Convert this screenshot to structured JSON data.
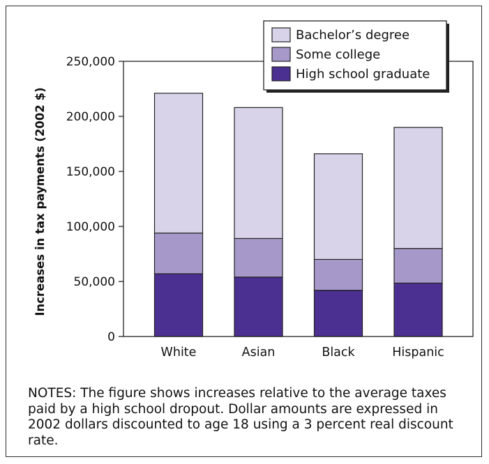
{
  "chart_data": {
    "type": "bar",
    "stacked": true,
    "categories": [
      "White",
      "Asian",
      "Black",
      "Hispanic"
    ],
    "series": [
      {
        "name": "High school graduate",
        "values": [
          57000,
          54000,
          42000,
          48500
        ],
        "color": "#4b2f91"
      },
      {
        "name": "Some college",
        "values": [
          37000,
          35000,
          28000,
          31500
        ],
        "color": "#a699c9"
      },
      {
        "name": "Bachelor’s degree",
        "values": [
          127000,
          119000,
          96000,
          110000
        ],
        "color": "#d8d3e8"
      }
    ],
    "legend_order": [
      "Bachelor’s degree",
      "Some college",
      "High school graduate"
    ],
    "legend_position": "top-right",
    "ylabel": "Increases in tax payments (2002 $)",
    "xlabel": "",
    "ylim": [
      0,
      250000
    ],
    "yticks": [
      0,
      50000,
      100000,
      150000,
      200000,
      250000
    ],
    "ytick_labels": [
      "0",
      "50,000",
      "100,000",
      "150,000",
      "200,000",
      "250,000"
    ],
    "grid": false
  },
  "notes": "NOTES: The figure shows increases relative to the average taxes paid by a high school dropout. Dollar amounts are expressed in 2002 dollars discounted to age 18 using a 3 percent real discount rate."
}
